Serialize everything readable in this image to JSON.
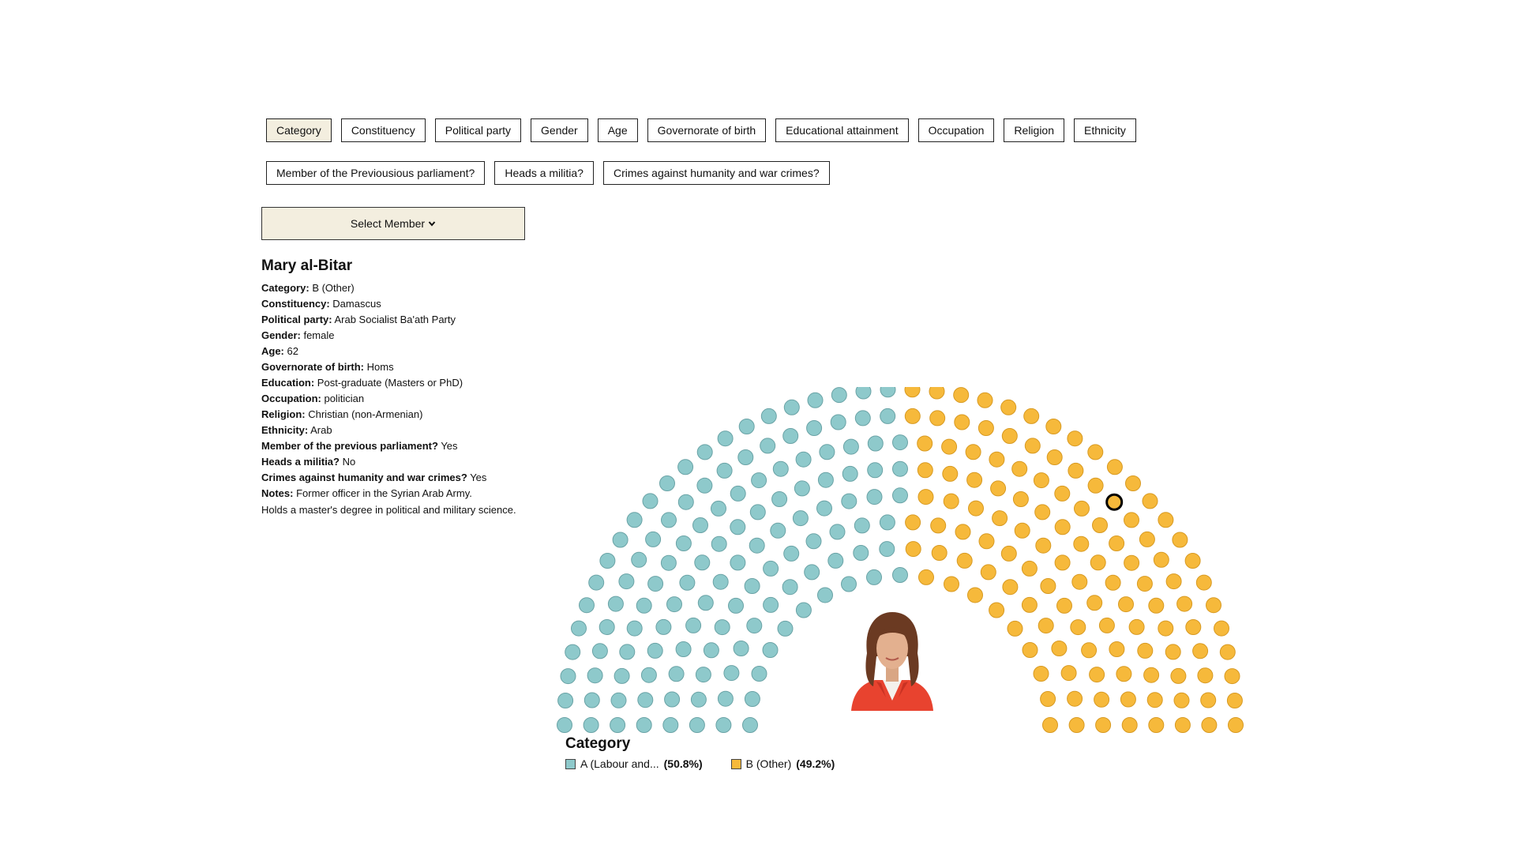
{
  "filters": [
    {
      "label": "Category",
      "active": true
    },
    {
      "label": "Constituency"
    },
    {
      "label": "Political party"
    },
    {
      "label": "Gender"
    },
    {
      "label": "Age"
    },
    {
      "label": "Governorate of birth"
    },
    {
      "label": "Educational attainment"
    },
    {
      "label": "Occupation"
    },
    {
      "label": "Religion"
    },
    {
      "label": "Ethnicity"
    },
    {
      "label": "Member of the Previousious parliament?"
    },
    {
      "label": "Heads a militia?"
    },
    {
      "label": "Crimes against humanity and war crimes?"
    }
  ],
  "select_member": {
    "label": "Select Member",
    "icon": "chevron-down-icon"
  },
  "member": {
    "name": "Mary al-Bitar",
    "fields": [
      {
        "key": "Category:",
        "value": "B (Other)"
      },
      {
        "key": "Constituency:",
        "value": "Damascus"
      },
      {
        "key": "Political party:",
        "value": "Arab Socialist Ba'ath Party"
      },
      {
        "key": "Gender:",
        "value": "female"
      },
      {
        "key": "Age:",
        "value": "62"
      },
      {
        "key": "Governorate of birth:",
        "value": "Homs"
      },
      {
        "key": "Education:",
        "value": "Post-graduate (Masters or PhD)"
      },
      {
        "key": "Occupation:",
        "value": "politician"
      },
      {
        "key": "Religion:",
        "value": "Christian (non-Armenian)"
      },
      {
        "key": "Ethnicity:",
        "value": "Arab"
      },
      {
        "key": "Member of the previous parliament?",
        "value": "Yes"
      },
      {
        "key": "Heads a militia?",
        "value": "No"
      },
      {
        "key": "Crimes against humanity and war crimes?",
        "value": "Yes"
      },
      {
        "key": "Notes:",
        "value": "Former officer in the Syrian Arab Army."
      }
    ],
    "notes_extra": "Holds a master's degree in political and military science."
  },
  "legend": {
    "title": "Category",
    "items": [
      {
        "label": "A (Labour and...",
        "pct": "(50.8%)",
        "color": "#8ec9cb"
      },
      {
        "label": "B (Other)",
        "pct": "(49.2%)",
        "color": "#f6b93b"
      }
    ]
  },
  "chart_data": {
    "type": "hemicycle",
    "title": "Category",
    "total_seats": 250,
    "rows": 8,
    "series": [
      {
        "name": "A (Labour and...",
        "seats": 127,
        "share": 50.8,
        "color": "#8ec9cb"
      },
      {
        "name": "B (Other)",
        "seats": 123,
        "share": 49.2,
        "color": "#f6b93b"
      }
    ],
    "highlighted_member": "Mary al-Bitar",
    "highlighted_category": "B (Other)"
  }
}
